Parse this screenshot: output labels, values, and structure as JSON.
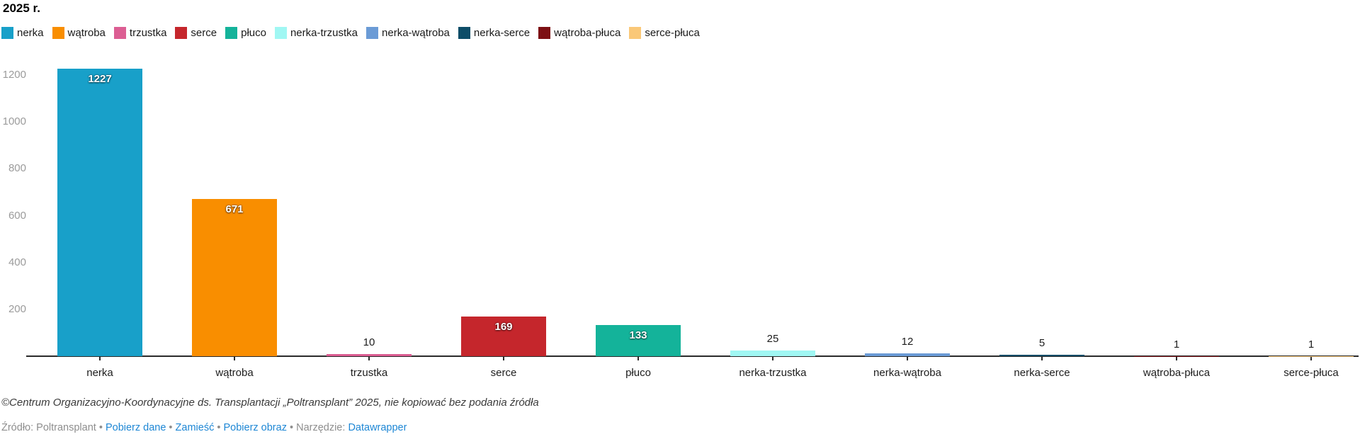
{
  "title": "2025 r.",
  "chart_data": {
    "type": "bar",
    "title": "2025 r.",
    "categories": [
      "nerka",
      "wątroba",
      "trzustka",
      "serce",
      "płuco",
      "nerka-trzustka",
      "nerka-wątroba",
      "nerka-serce",
      "wątroba-płuca",
      "serce-płuca"
    ],
    "values": [
      1227,
      671,
      10,
      169,
      133,
      25,
      12,
      5,
      1,
      1
    ],
    "colors": [
      "#18a0c9",
      "#f98e00",
      "#dc5e93",
      "#c5262c",
      "#14b39a",
      "#a0f7f3",
      "#6b9bd6",
      "#0d4d68",
      "#7d1014",
      "#fac878"
    ],
    "xlabel": "",
    "ylabel": "",
    "ylim": [
      0,
      1240
    ],
    "yticks": [
      200,
      400,
      600,
      800,
      1000,
      1200
    ],
    "grid": false,
    "legend_position": "top"
  },
  "footer": {
    "attribution": "©Centrum Organizacyjno-Koordynacyjne ds. Transplantacji „Poltransplant” 2025, nie kopiować bez podania źródła",
    "source_label": "Źródło:",
    "source_value": "Poltransplant",
    "links": [
      "Pobierz dane",
      "Zamieść",
      "Pobierz obraz"
    ],
    "tool_label": "Narzędzie:",
    "tool_value": "Datawrapper",
    "separator": "•"
  },
  "colors": {
    "link": "#1e87d5",
    "axis": "#2a2a2a",
    "y_tick_label": "#9b9b9b",
    "value_label_inside": "#ffffff",
    "value_label_outside": "#1d1d1d"
  }
}
